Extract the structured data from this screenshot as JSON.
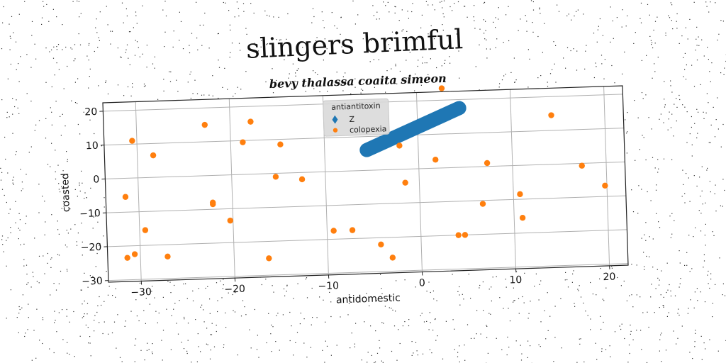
{
  "title": "slingers brimful",
  "chart_data": {
    "type": "scatter",
    "subtitle": "bevy thalassa coaita simeon",
    "xlabel": "antidomestic",
    "ylabel": "coasted",
    "xlim": [
      -33.5,
      22
    ],
    "ylim": [
      -30.5,
      22.5
    ],
    "xticks": [
      -30,
      -20,
      -10,
      0,
      10,
      20
    ],
    "yticks": [
      -30,
      -20,
      -10,
      0,
      10,
      20
    ],
    "xtick_labels": [
      "−30",
      "−20",
      "−10",
      "0",
      "10",
      "20"
    ],
    "ytick_labels": [
      "−30",
      "−20",
      "−10",
      "0",
      "10",
      "20"
    ],
    "grid": true,
    "legend": {
      "title": "antiantitoxin",
      "placement": "top-center",
      "entries": [
        {
          "label": "Z",
          "color": "#1f77b4",
          "marker": "diamond"
        },
        {
          "label": "colopexia",
          "color": "#ff7f0e",
          "marker": "circle"
        }
      ]
    },
    "series": [
      {
        "name": "Z",
        "color": "#1f77b4",
        "style": "thick-line",
        "x": [
          -5.5,
          4.5
        ],
        "y": [
          6.0,
          17.5
        ]
      },
      {
        "name": "colopexia",
        "color": "#ff7f0e",
        "style": "points",
        "x": [
          -30.5,
          -28.3,
          -22.7,
          -17.8,
          -18.7,
          -31.4,
          -22.1,
          -22.1,
          -29.4,
          -20.3,
          -15.3,
          -12.5,
          -14.7,
          -30.6,
          -31.4,
          -27.1,
          -16.3,
          -9.3,
          -7.3,
          -4.3,
          -3.1,
          -2.0,
          -1.5,
          1.8,
          2.7,
          4.0,
          4.7,
          7.3,
          6.7,
          10.7,
          10.9,
          14.3,
          17.4,
          19.8
        ],
        "y": [
          11.0,
          6.5,
          15.0,
          15.5,
          9.5,
          -5.5,
          -8.0,
          -8.5,
          -15.5,
          -13.5,
          -1.0,
          -2.0,
          8.5,
          -22.5,
          -23.5,
          -23.5,
          -25.0,
          -17.5,
          -17.5,
          -22.0,
          -26.0,
          7.0,
          -4.0,
          2.5,
          23.5,
          -20.0,
          -20.0,
          1.0,
          -11.0,
          -8.5,
          -15.5,
          14.5,
          -0.7,
          -6.8
        ]
      }
    ]
  },
  "colors": {
    "background": "#ffffff",
    "axes_background": "#ffffff",
    "grid": "#b0b0b0",
    "series_z": "#1f77b4",
    "series_colopexia": "#ff7f0e"
  }
}
